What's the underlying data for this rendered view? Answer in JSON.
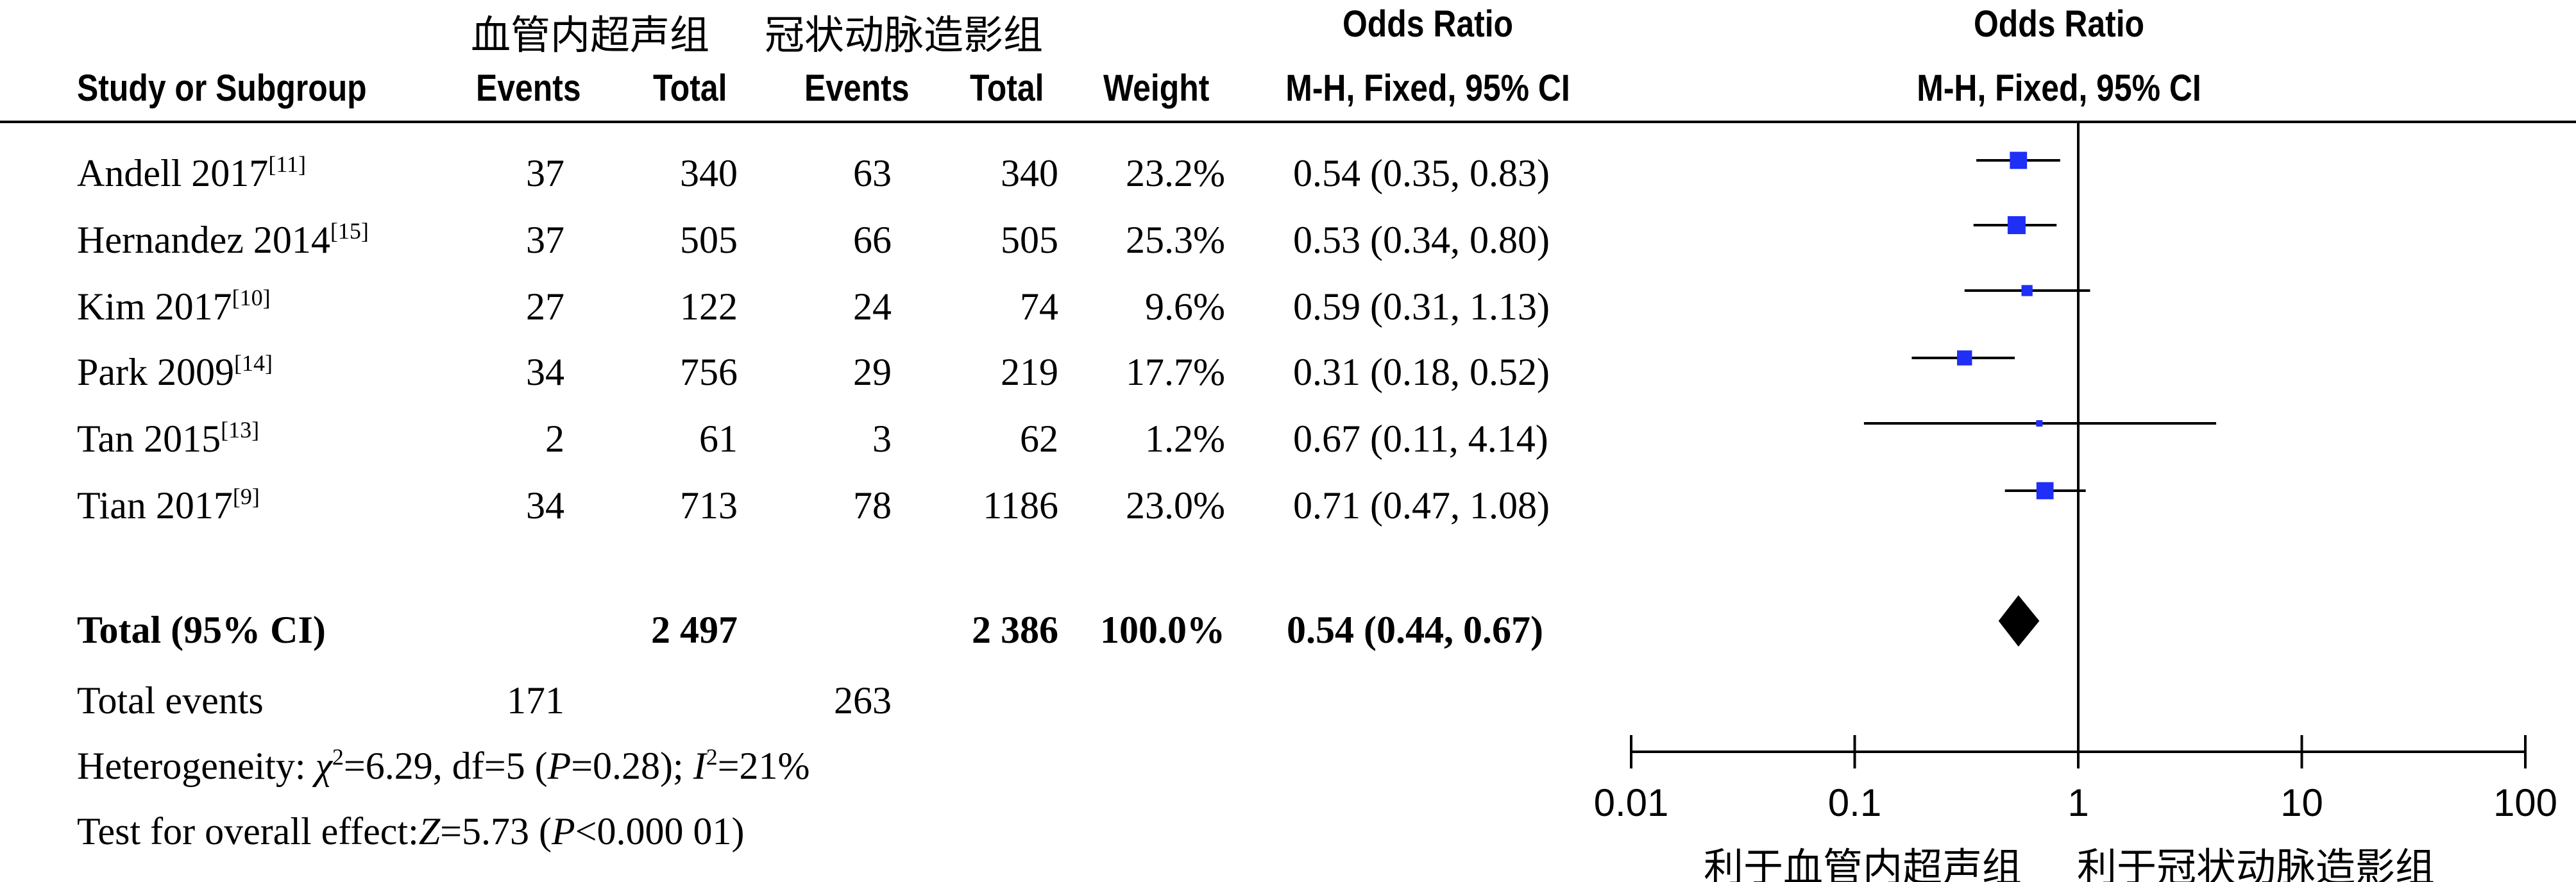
{
  "header": {
    "group1": "血管内超声组",
    "group2": "冠状动脉造影组",
    "study_col": "Study or Subgroup",
    "events1": "Events",
    "total1": "Total",
    "events2": "Events",
    "total2": "Total",
    "weight": "Weight",
    "or_title": "Odds Ratio",
    "or_method": "M-H, Fixed, 95% CI",
    "plot_title": "Odds Ratio",
    "plot_method": "M-H, Fixed, 95% CI"
  },
  "studies": [
    {
      "name": "Andell 2017",
      "ref": "[11]",
      "events1": "37",
      "total1": "340",
      "events2": "63",
      "total2": "340",
      "weight": "23.2%",
      "ci": "0.54 (0.35, 0.83)"
    },
    {
      "name": "Hernandez 2014",
      "ref": "[15]",
      "events1": "37",
      "total1": "505",
      "events2": "66",
      "total2": "505",
      "weight": "25.3%",
      "ci": "0.53 (0.34, 0.80)"
    },
    {
      "name": "Kim 2017",
      "ref": "[10]",
      "events1": "27",
      "total1": "122",
      "events2": "24",
      "total2": "74",
      "weight": "9.6%",
      "ci": "0.59 (0.31, 1.13)"
    },
    {
      "name": "Park 2009",
      "ref": "[14]",
      "events1": "34",
      "total1": "756",
      "events2": "29",
      "total2": "219",
      "weight": "17.7%",
      "ci": "0.31 (0.18, 0.52)"
    },
    {
      "name": "Tan 2015",
      "ref": "[13]",
      "events1": "2",
      "total1": "61",
      "events2": "3",
      "total2": "62",
      "weight": "1.2%",
      "ci": "0.67 (0.11, 4.14)"
    },
    {
      "name": "Tian 2017",
      "ref": "[9]",
      "events1": "34",
      "total1": "713",
      "events2": "78",
      "total2": "1186",
      "weight": "23.0%",
      "ci": "0.71 (0.47, 1.08)"
    }
  ],
  "total_row": {
    "label": "Total (95% CI)",
    "total1": "2 497",
    "total2": "2 386",
    "weight": "100.0%",
    "ci": "0.54 (0.44, 0.67)"
  },
  "events_row": {
    "label": "Total events",
    "events1": "171",
    "events2": "263"
  },
  "heterogeneity": {
    "prefix": "Heterogeneity: ",
    "chi": "χ",
    "chi_sup": "2",
    "part1": "=6.29, df=5 (",
    "p1": "P",
    "part2": "=0.28); ",
    "i": "I",
    "i_sup": "2",
    "part3": "=21%"
  },
  "overall": {
    "prefix": "Test for overall effect:",
    "z": "Z",
    "part1": "=5.73 (",
    "p": "P",
    "part2": "<0.000 01)"
  },
  "favour_left": "利于血管内超声组",
  "favour_right": "利于冠状动脉造影组",
  "colors": {
    "marker": "#1f2ff5",
    "line": "#000000"
  },
  "chart_data": {
    "type": "forest",
    "scale": "log",
    "xlim": [
      0.01,
      100
    ],
    "ticks": [
      0.01,
      0.1,
      1,
      10,
      100
    ],
    "tick_labels": [
      "0.01",
      "0.1",
      "1",
      "10",
      "100"
    ],
    "reference_line": 1,
    "studies": [
      {
        "name": "Andell 2017",
        "or": 0.54,
        "lower": 0.35,
        "upper": 0.83,
        "weight": 23.2
      },
      {
        "name": "Hernandez 2014",
        "or": 0.53,
        "lower": 0.34,
        "upper": 0.8,
        "weight": 25.3
      },
      {
        "name": "Kim 2017",
        "or": 0.59,
        "lower": 0.31,
        "upper": 1.13,
        "weight": 9.6
      },
      {
        "name": "Park 2009",
        "or": 0.31,
        "lower": 0.18,
        "upper": 0.52,
        "weight": 17.7
      },
      {
        "name": "Tan 2015",
        "or": 0.67,
        "lower": 0.11,
        "upper": 4.14,
        "weight": 1.2
      },
      {
        "name": "Tian 2017",
        "or": 0.71,
        "lower": 0.47,
        "upper": 1.08,
        "weight": 23.0
      }
    ],
    "pooled": {
      "or": 0.54,
      "lower": 0.44,
      "upper": 0.67
    }
  }
}
